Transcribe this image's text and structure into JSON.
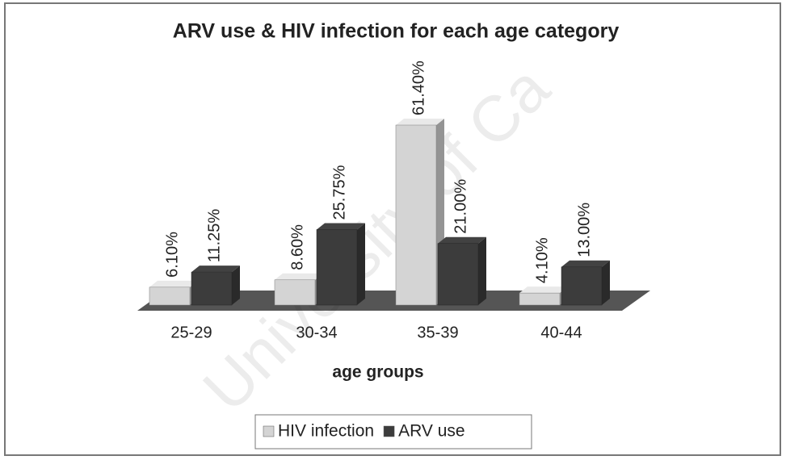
{
  "chart_data": {
    "type": "bar3d",
    "title": "ARV use & HIV infection for each age category",
    "x_label": "age groups",
    "watermark": "University of Ca",
    "categories": [
      "25-29",
      "30-34",
      "35-39",
      "40-44"
    ],
    "series": [
      {
        "name": "HIV infection",
        "color": "#d4d4d4",
        "values": [
          6.1,
          8.6,
          61.4,
          4.1
        ],
        "value_labels": [
          "6.10%",
          "8.60%",
          "61.40%",
          "4.10%"
        ]
      },
      {
        "name": "ARV use",
        "color": "#3c3c3c",
        "values": [
          11.25,
          25.75,
          21,
          13
        ],
        "value_labels": [
          "11.25%",
          "25.75%",
          "21.00%",
          "13.00%"
        ]
      }
    ],
    "legend": "bottom"
  }
}
